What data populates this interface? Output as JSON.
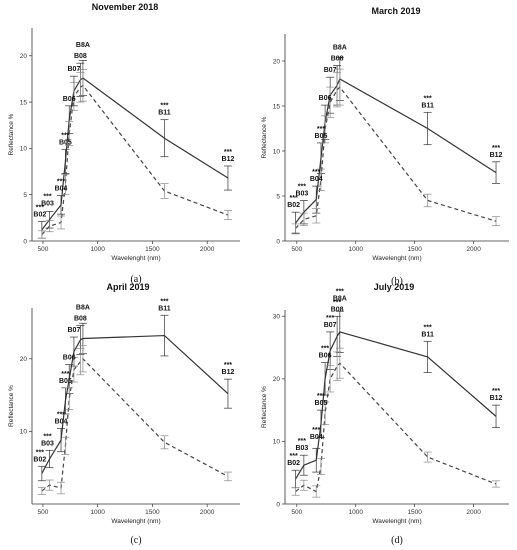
{
  "chart_data": [
    {
      "type": "line",
      "title": "November 2018",
      "caption": "(a)",
      "xlabel": "Wavelenght (nm)",
      "ylabel": "Reflectance %",
      "xlim": [
        400,
        2300
      ],
      "ylim": [
        0,
        23
      ],
      "xticks": [
        500,
        1000,
        1500,
        2000
      ],
      "yticks": [
        0,
        5,
        10,
        15,
        20
      ],
      "x": [
        490,
        560,
        665,
        705,
        740,
        783,
        842,
        865,
        1610,
        2190
      ],
      "series": [
        {
          "style": "solid",
          "values": [
            1.2,
            2.3,
            3.9,
            8.6,
            13.1,
            16.2,
            17.4,
            17.6,
            11.1,
            6.8
          ],
          "errors": [
            0.9,
            0.9,
            1.0,
            1.3,
            1.5,
            1.6,
            1.8,
            1.9,
            2.0,
            1.3
          ]
        },
        {
          "style": "dashed",
          "values": [
            0.7,
            1.6,
            2.0,
            6.1,
            11.6,
            15.6,
            16.6,
            16.8,
            5.4,
            2.8
          ],
          "errors": [
            0.4,
            0.6,
            0.7,
            1.1,
            1.3,
            1.5,
            1.6,
            1.7,
            0.8,
            0.5
          ]
        }
      ],
      "band_labels": [
        {
          "band": "B02",
          "x": 490,
          "stars": "***"
        },
        {
          "band": "B03",
          "x": 560,
          "stars": "***"
        },
        {
          "band": "B04",
          "x": 665,
          "stars": "***"
        },
        {
          "band": "B05",
          "x": 705,
          "stars": "***"
        },
        {
          "band": "B06",
          "x": 740,
          "stars": ""
        },
        {
          "band": "B07",
          "x": 783,
          "stars": ""
        },
        {
          "band": "B08",
          "x": 842,
          "stars": ""
        },
        {
          "band": "B8A",
          "x": 865,
          "stars": ""
        },
        {
          "band": "B11",
          "x": 1610,
          "stars": "***"
        },
        {
          "band": "B12",
          "x": 2190,
          "stars": "***"
        }
      ],
      "grid": false
    },
    {
      "type": "line",
      "title": "March 2019",
      "caption": "(b)",
      "xlabel": "Wavelenght (nm)",
      "ylabel": "Reflectance %",
      "xlim": [
        400,
        2300
      ],
      "ylim": [
        0,
        23
      ],
      "xticks": [
        500,
        1000,
        1500,
        2000
      ],
      "yticks": [
        0,
        5,
        10,
        15,
        20
      ],
      "x": [
        490,
        560,
        665,
        705,
        740,
        783,
        842,
        865,
        1610,
        2190
      ],
      "series": [
        {
          "style": "solid",
          "values": [
            2.0,
            3.2,
            4.6,
            9.2,
            13.2,
            16.2,
            17.3,
            18.0,
            12.5,
            7.6
          ],
          "errors": [
            1.2,
            1.3,
            1.5,
            1.7,
            1.9,
            2.0,
            2.2,
            2.4,
            1.8,
            1.2
          ]
        },
        {
          "style": "dashed",
          "values": [
            1.4,
            2.4,
            2.8,
            6.8,
            12.4,
            15.4,
            16.8,
            17.1,
            4.5,
            2.2
          ],
          "errors": [
            0.5,
            0.7,
            0.8,
            1.2,
            1.5,
            1.7,
            1.9,
            2.0,
            0.7,
            0.5
          ]
        }
      ],
      "band_labels": [
        {
          "band": "B02",
          "x": 490,
          "stars": "***"
        },
        {
          "band": "B03",
          "x": 560,
          "stars": "***"
        },
        {
          "band": "B04",
          "x": 665,
          "stars": "***"
        },
        {
          "band": "B05",
          "x": 705,
          "stars": "***"
        },
        {
          "band": "B06",
          "x": 740,
          "stars": ""
        },
        {
          "band": "B07",
          "x": 783,
          "stars": ""
        },
        {
          "band": "B08",
          "x": 842,
          "stars": ""
        },
        {
          "band": "B8A",
          "x": 865,
          "stars": ""
        },
        {
          "band": "B11",
          "x": 1610,
          "stars": "***"
        },
        {
          "band": "B12",
          "x": 2190,
          "stars": "***"
        }
      ],
      "grid": false
    },
    {
      "type": "line",
      "title": "April 2019",
      "caption": "(c)",
      "xlabel": "Wavelenght (nm)",
      "ylabel": "Reflectance %",
      "xlim": [
        400,
        2300
      ],
      "ylim": [
        0,
        27
      ],
      "xticks": [
        500,
        1000,
        1500,
        2000
      ],
      "yticks": [
        10,
        20
      ],
      "x": [
        490,
        560,
        665,
        705,
        740,
        783,
        842,
        865,
        1610,
        2190
      ],
      "series": [
        {
          "style": "solid",
          "values": [
            4.2,
            6.2,
            8.8,
            14.2,
            17.2,
            21.0,
            22.6,
            22.8,
            23.2,
            15.2
          ],
          "errors": [
            1.0,
            1.2,
            1.6,
            1.8,
            2.0,
            2.0,
            2.0,
            2.1,
            2.8,
            2.0
          ]
        },
        {
          "style": "dashed",
          "values": [
            1.8,
            2.6,
            2.2,
            8.0,
            14.5,
            18.5,
            19.6,
            20.0,
            8.5,
            3.8
          ],
          "errors": [
            0.5,
            0.7,
            0.8,
            1.2,
            1.5,
            1.7,
            1.8,
            1.8,
            0.9,
            0.6
          ]
        }
      ],
      "band_labels": [
        {
          "band": "B02",
          "x": 490,
          "stars": "***"
        },
        {
          "band": "B03",
          "x": 560,
          "stars": "***"
        },
        {
          "band": "B04",
          "x": 665,
          "stars": "***"
        },
        {
          "band": "B05",
          "x": 705,
          "stars": "***"
        },
        {
          "band": "B06",
          "x": 740,
          "stars": ""
        },
        {
          "band": "B07",
          "x": 783,
          "stars": ""
        },
        {
          "band": "B08",
          "x": 842,
          "stars": ""
        },
        {
          "band": "B8A",
          "x": 865,
          "stars": ""
        },
        {
          "band": "B11",
          "x": 1610,
          "stars": "***"
        },
        {
          "band": "B12",
          "x": 2190,
          "stars": "***"
        }
      ],
      "grid": false
    },
    {
      "type": "line",
      "title": "July 2019",
      "caption": "(d)",
      "xlabel": "Wavelenght (nm)",
      "ylabel": "Reflectance %",
      "xlim": [
        400,
        2300
      ],
      "ylim": [
        0,
        31
      ],
      "xticks": [
        500,
        1000,
        1500,
        2000
      ],
      "yticks": [
        0,
        10,
        20,
        30
      ],
      "x": [
        490,
        560,
        665,
        705,
        740,
        783,
        842,
        865,
        1610,
        2190
      ],
      "series": [
        {
          "style": "solid",
          "values": [
            4.0,
            6.2,
            7.0,
            12.8,
            20.0,
            24.5,
            26.8,
            27.5,
            23.5,
            14.0
          ],
          "errors": [
            1.4,
            1.6,
            1.9,
            2.2,
            2.6,
            3.0,
            3.2,
            3.3,
            2.5,
            1.8
          ]
        },
        {
          "style": "dashed",
          "values": [
            2.0,
            3.0,
            2.0,
            6.0,
            14.5,
            20.0,
            22.0,
            22.5,
            7.5,
            3.2
          ],
          "errors": [
            0.6,
            0.8,
            0.9,
            1.3,
            1.8,
            2.1,
            2.3,
            2.4,
            0.8,
            0.5
          ]
        }
      ],
      "band_labels": [
        {
          "band": "B02",
          "x": 490,
          "stars": "***"
        },
        {
          "band": "B03",
          "x": 560,
          "stars": "***"
        },
        {
          "band": "B04",
          "x": 665,
          "stars": "***"
        },
        {
          "band": "B05",
          "x": 705,
          "stars": "***"
        },
        {
          "band": "B06",
          "x": 740,
          "stars": "***"
        },
        {
          "band": "B07",
          "x": 783,
          "stars": "***"
        },
        {
          "band": "B08",
          "x": 842,
          "stars": "***"
        },
        {
          "band": "B8A",
          "x": 865,
          "stars": "***"
        },
        {
          "band": "B11",
          "x": 1610,
          "stars": "***"
        },
        {
          "band": "B12",
          "x": 2190,
          "stars": "***"
        }
      ],
      "grid": false
    }
  ]
}
